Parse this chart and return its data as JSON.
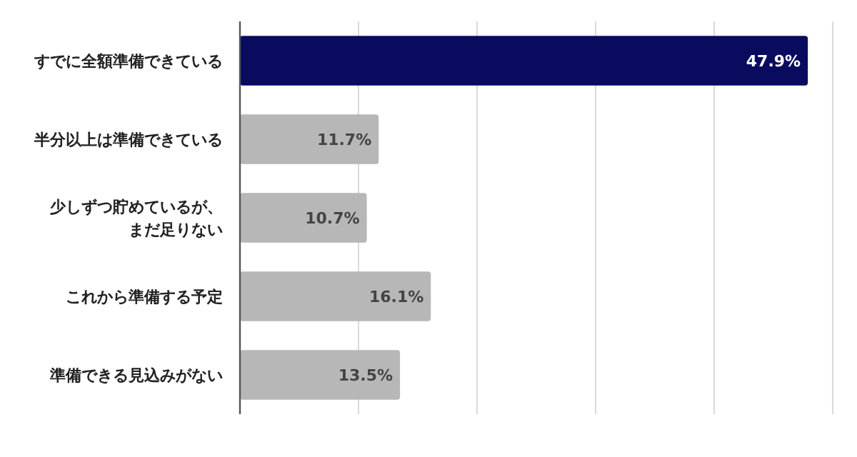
{
  "chart_data": {
    "type": "bar",
    "orientation": "horizontal",
    "categories": [
      "すでに全額準備できている",
      "半分以上は準備できている",
      "少しずつ貯めているが、まだ足りない",
      "これから準備する予定",
      "準備できる見込みがない"
    ],
    "values": [
      47.9,
      11.7,
      10.7,
      16.1,
      13.5
    ],
    "colors": [
      "#0a0a5e",
      "#b7b7b7",
      "#b7b7b7",
      "#b7b7b7",
      "#b7b7b7"
    ],
    "value_labels": [
      "47.9%",
      "11.7%",
      "10.7%",
      "16.1%",
      "13.5%"
    ],
    "xlim": [
      0,
      50
    ],
    "xticks": [
      {
        "value": 0,
        "label": null
      },
      {
        "value": 10,
        "label": null
      },
      {
        "value": 20,
        "label": null
      },
      {
        "value": 30,
        "label": null
      },
      {
        "value": 40,
        "label": null
      },
      {
        "value": 50,
        "label": null
      }
    ],
    "grid": "x",
    "tick_labels": "y"
  }
}
